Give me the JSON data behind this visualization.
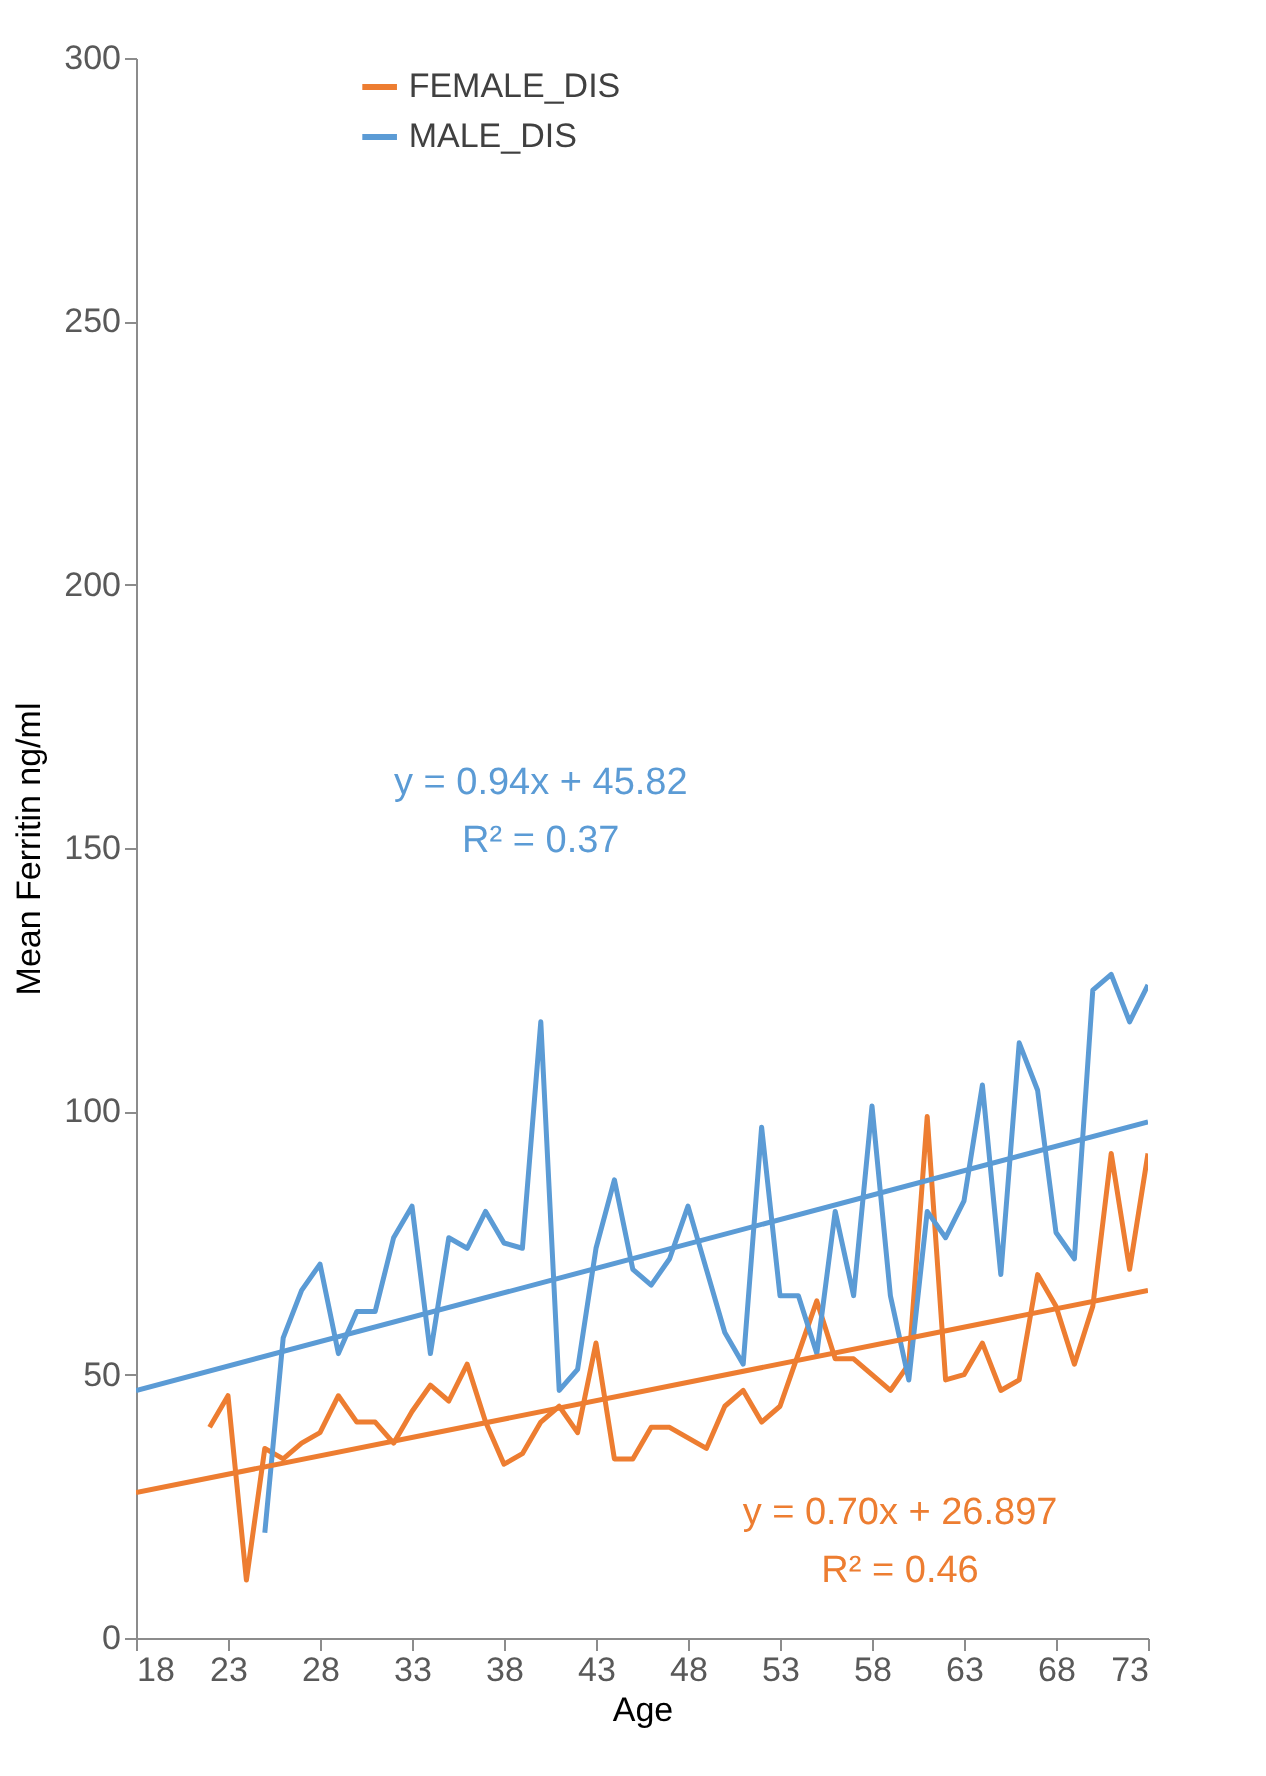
{
  "chart_data": {
    "type": "line",
    "xlabel": "Age",
    "ylabel": "Mean Ferritin ng/ml",
    "xlim": [
      18,
      73
    ],
    "xticks": [
      18,
      23,
      28,
      33,
      38,
      43,
      48,
      53,
      58,
      63,
      68,
      73
    ],
    "ylim": [
      0,
      300
    ],
    "yticks": [
      0,
      50,
      100,
      150,
      200,
      250,
      300
    ],
    "grid": false,
    "legend": "top",
    "marker": "none",
    "line_style": "solid",
    "series": [
      {
        "name": "FEMALE_DIS",
        "color": "#ed7d31",
        "x": [
          22,
          23,
          24,
          25,
          26,
          27,
          28,
          29,
          30,
          31,
          32,
          33,
          34,
          35,
          36,
          37,
          38,
          39,
          40,
          41,
          42,
          43,
          44,
          45,
          46,
          47,
          48,
          49,
          50,
          51,
          52,
          53,
          54,
          55,
          56,
          57,
          58,
          59,
          60,
          61,
          62,
          63,
          64,
          65,
          66,
          67,
          68,
          69,
          70,
          71,
          72,
          73
        ],
        "values": [
          40,
          46,
          11,
          36,
          34,
          37,
          39,
          46,
          41,
          41,
          37,
          43,
          48,
          45,
          52,
          41,
          33,
          35,
          41,
          44,
          39,
          56,
          34,
          34,
          40,
          40,
          38,
          36,
          44,
          47,
          41,
          44,
          54,
          64,
          53,
          53,
          50,
          47,
          52,
          99,
          49,
          50,
          56,
          47,
          49,
          69,
          63,
          52,
          63,
          92,
          70,
          92
        ]
      },
      {
        "name": "MALE_DIS",
        "color": "#5b9bd5",
        "x": [
          25,
          26,
          27,
          28,
          29,
          30,
          31,
          32,
          33,
          34,
          35,
          36,
          37,
          38,
          39,
          40,
          41,
          42,
          43,
          44,
          45,
          46,
          47,
          48,
          49,
          50,
          51,
          52,
          53,
          54,
          55,
          56,
          57,
          58,
          59,
          60,
          61,
          62,
          63,
          64,
          65,
          66,
          67,
          68,
          69,
          70,
          71,
          72,
          73
        ],
        "values": [
          20,
          57,
          66,
          71,
          54,
          62,
          62,
          76,
          82,
          54,
          76,
          74,
          81,
          75,
          74,
          117,
          47,
          51,
          74,
          87,
          70,
          67,
          72,
          82,
          70,
          58,
          52,
          97,
          65,
          65,
          54,
          81,
          65,
          101,
          65,
          49,
          81,
          76,
          83,
          105,
          69,
          113,
          104,
          77,
          72,
          123,
          126,
          117,
          124
        ]
      },
      {
        "type": "line",
        "color": "#ed7d31",
        "x": [
          18,
          73
        ],
        "values": [
          27.6,
          66
        ]
      },
      {
        "type": "line",
        "color": "#5b9bd5",
        "x": [
          18,
          73
        ],
        "values": [
          47,
          98
        ]
      }
    ],
    "annotations": [
      "y = 0.94x + 45.82",
      "R² = 0.37",
      "y = 0.70x + 26.897",
      "R² = 0.46"
    ]
  }
}
